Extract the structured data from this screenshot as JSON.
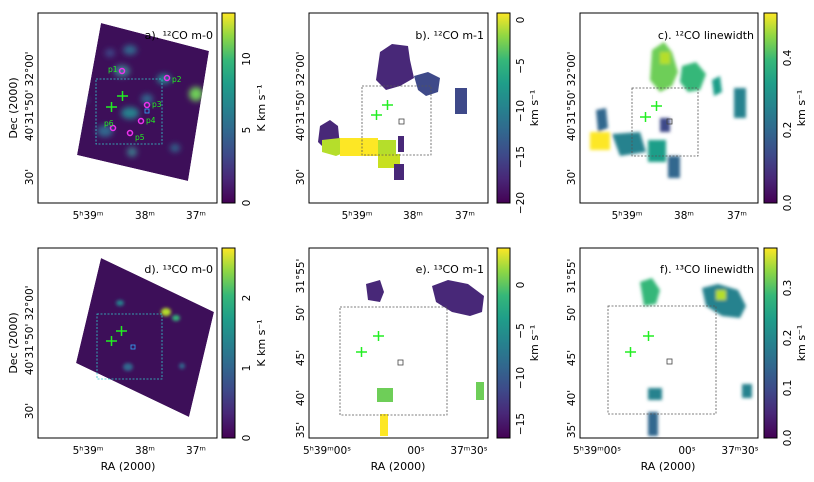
{
  "chart_data": [
    {
      "type": "heatmap",
      "title": "a). ¹²CO m-0",
      "xlabel": "",
      "ylabel": "Dec (2000)",
      "x_ticks": [
        "5ʰ39ᵐ",
        "38ᵐ",
        "37ᵐ"
      ],
      "y_ticks": [
        "31°50' 32°00'",
        "40'",
        "30'"
      ],
      "colorbar": {
        "label": "K km s⁻¹",
        "range": [
          0,
          13
        ],
        "ticks": [
          "0",
          "5",
          "10"
        ]
      },
      "annotations": [
        "p1",
        "p2",
        "p3",
        "p4",
        "p5",
        "p6"
      ]
    },
    {
      "type": "heatmap",
      "title": "b). ¹²CO m-1",
      "xlabel": "",
      "ylabel": "",
      "x_ticks": [
        "5ʰ39ᵐ",
        "38ᵐ",
        "37ᵐ"
      ],
      "y_ticks": [
        "31°50' 32°00'",
        "40'",
        "30'"
      ],
      "colorbar": {
        "label": "km s⁻¹",
        "range": [
          -20,
          0
        ],
        "ticks": [
          "0",
          "−5",
          "−10",
          "−15",
          "−20"
        ]
      }
    },
    {
      "type": "heatmap",
      "title": "c). ¹²CO linewidth",
      "xlabel": "",
      "ylabel": "",
      "x_ticks": [
        "5ʰ39ᵐ",
        "38ᵐ",
        "37ᵐ"
      ],
      "y_ticks": [
        "31°50' 32°00'",
        "40'",
        "30'"
      ],
      "colorbar": {
        "label": "km s⁻¹",
        "range": [
          0,
          0.5
        ],
        "ticks": [
          "0.0",
          "0.2",
          "0.4"
        ]
      }
    },
    {
      "type": "heatmap",
      "title": "d). ¹³CO m-0",
      "xlabel": "RA (2000)",
      "ylabel": "Dec (2000)",
      "x_ticks": [
        "5ʰ39ᵐ",
        "38ᵐ",
        "37ᵐ"
      ],
      "y_ticks": [
        "31°50' 32°00'",
        "40'",
        "30'"
      ],
      "colorbar": {
        "label": "K km s⁻¹",
        "range": [
          0,
          2.7
        ],
        "ticks": [
          "0",
          "1",
          "2"
        ]
      }
    },
    {
      "type": "heatmap",
      "title": "e). ¹³CO m-1",
      "xlabel": "RA (2000)",
      "ylabel": "",
      "x_ticks": [
        "5ʰ39ᵐ00ˢ",
        "00ˢ",
        "37ᵐ30ˢ"
      ],
      "y_ticks": [
        "31°55'",
        "50'",
        "45'",
        "40'",
        "35'"
      ],
      "colorbar": {
        "label": "km s⁻¹",
        "range": [
          -17,
          3
        ],
        "ticks": [
          "0",
          "−5",
          "−10",
          "−15"
        ]
      }
    },
    {
      "type": "heatmap",
      "title": "f). ¹³CO linewidth",
      "xlabel": "RA (2000)",
      "ylabel": "",
      "x_ticks": [
        "5ʰ39ᵐ00ˢ",
        "00ˢ",
        "37ᵐ30ˢ"
      ],
      "y_ticks": [
        "31°55'",
        "50'",
        "45'",
        "40'",
        "35'"
      ],
      "colorbar": {
        "label": "km s⁻¹",
        "range": [
          0,
          0.38
        ],
        "ticks": [
          "0.0",
          "0.1",
          "0.2",
          "0.3"
        ]
      }
    }
  ],
  "colors": {
    "background": "#3b0d56",
    "viridis": [
      "#440154",
      "#482878",
      "#3e4989",
      "#31688e",
      "#26828e",
      "#1f9e89",
      "#35b779",
      "#6ece58",
      "#b5de2b",
      "#fde725"
    ],
    "cross_marker": "#22ee22",
    "pink_markers": "#ee33ee",
    "cyan_box": "#33cccc"
  }
}
